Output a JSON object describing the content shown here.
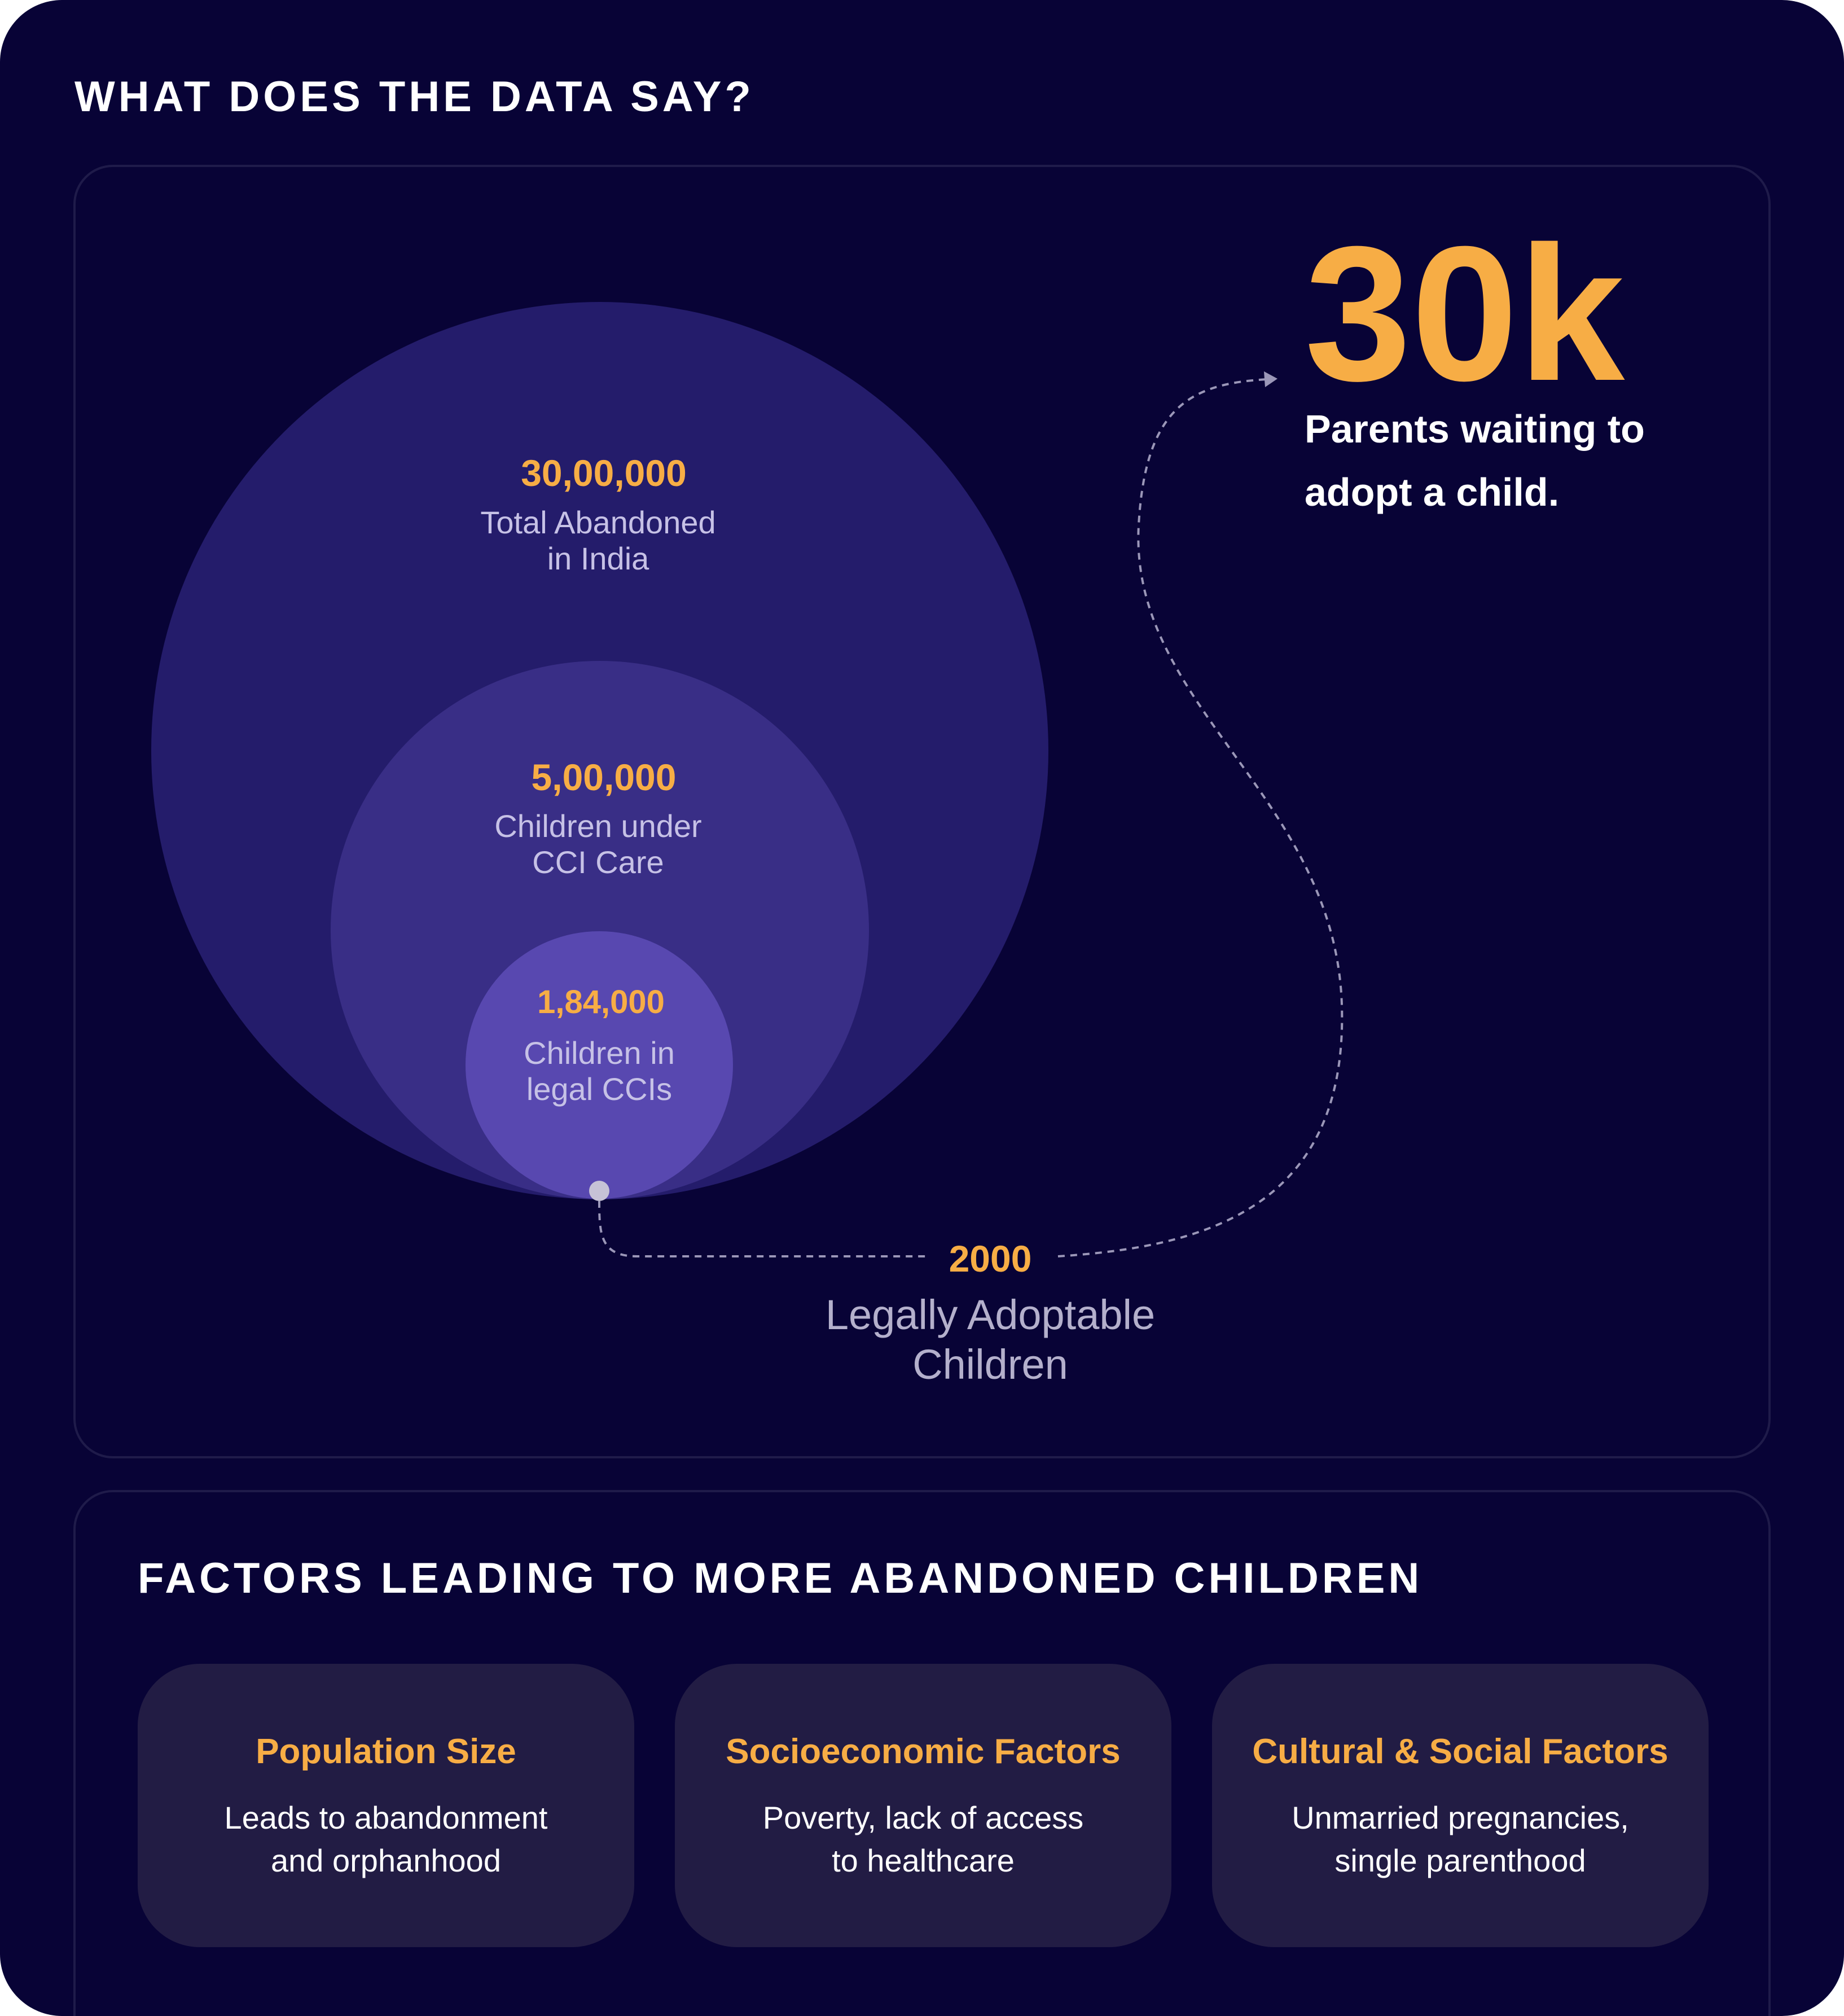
{
  "header": {
    "title": "WHAT DOES THE DATA SAY?"
  },
  "circles": [
    {
      "value": "30,00,000",
      "label_line1": "Total Abandoned",
      "label_line2": "in India",
      "color": "#241c6b"
    },
    {
      "value": "5,00,000",
      "label_line1": "Children under",
      "label_line2": "CCI Care",
      "color": "#392e86"
    },
    {
      "value": "1,84,000",
      "label_line1": "Children in",
      "label_line2": "legal CCIs",
      "color": "#5848b0"
    }
  ],
  "adoptable": {
    "value": "2000",
    "label_line1": "Legally Adoptable",
    "label_line2": "Children"
  },
  "highlight": {
    "value": "30k",
    "label_line1": "Parents waiting to",
    "label_line2": "adopt a child."
  },
  "factors": {
    "title": "FACTORS LEADING TO MORE ABANDONED CHILDREN",
    "cards": [
      {
        "title": "Population Size",
        "line1": "Leads to abandonment",
        "line2": "and orphanhood"
      },
      {
        "title": "Socioeconomic Factors",
        "line1": "Poverty, lack of access",
        "line2": "to healthcare"
      },
      {
        "title": "Cultural & Social Factors",
        "line1": "Unmarried pregnancies,",
        "line2": "single parenthood"
      }
    ]
  },
  "colors": {
    "background": "#080336",
    "accent": "#f7ad45",
    "card": "#221c44",
    "connector": "#9b97b8"
  }
}
